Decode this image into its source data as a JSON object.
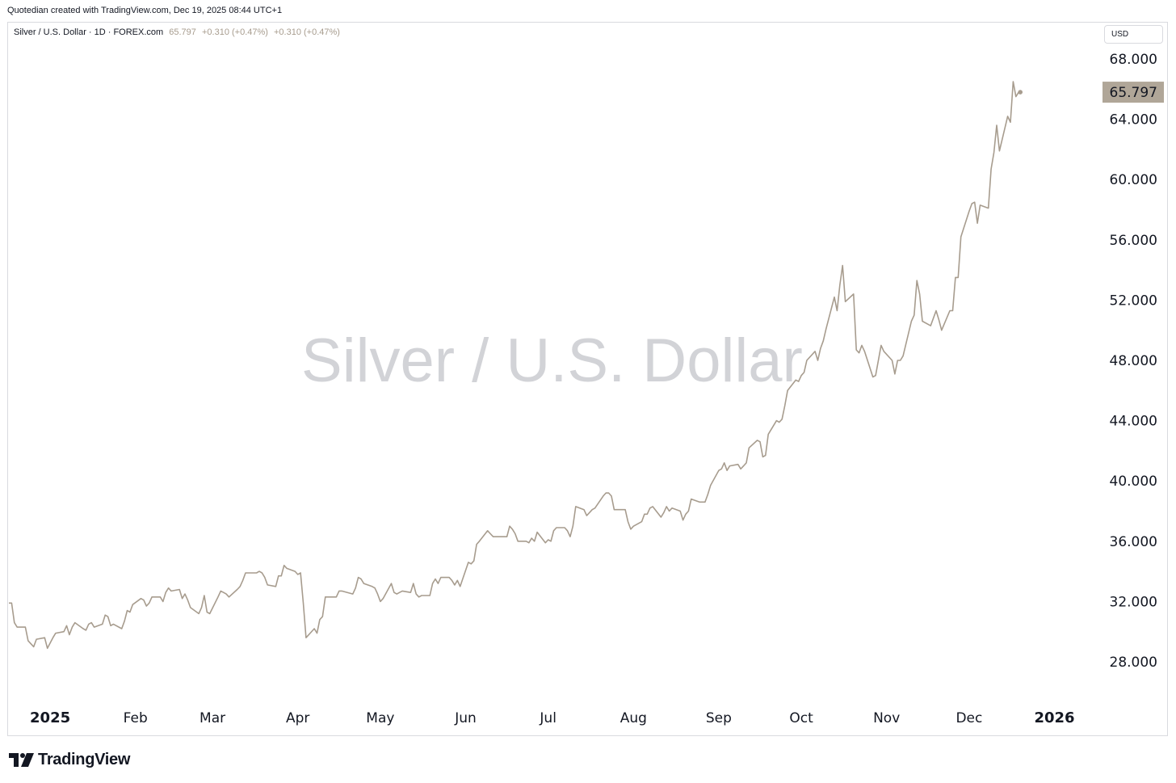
{
  "header": {
    "caption": "Quotedian created with TradingView.com, Dec 19, 2025 08:44 UTC+1"
  },
  "legend": {
    "symbol": "Silver / U.S. Dollar · 1D · FOREX.com",
    "last": "65.797",
    "change_1": "+0.310 (+0.47%)",
    "change_2": "+0.310 (+0.47%)"
  },
  "currency_button": "USD",
  "watermark": "Silver / U.S. Dollar",
  "brand": {
    "name": "TradingView",
    "icon": "tradingview-logo-icon"
  },
  "colors": {
    "line": "#a79c8e",
    "price_label_bg": "#b0a698",
    "grid": "#ffffff",
    "axis_text": "#131722"
  },
  "chart_data": {
    "type": "line",
    "title": "Silver / U.S. Dollar",
    "xlabel": "",
    "ylabel": "",
    "x_tick_labels": [
      "2025",
      "Feb",
      "Mar",
      "Apr",
      "May",
      "Jun",
      "Jul",
      "Aug",
      "Sep",
      "Oct",
      "Nov",
      "Dec",
      "2026"
    ],
    "y_tick_labels": [
      "28.000",
      "32.000",
      "36.000",
      "40.000",
      "44.000",
      "48.000",
      "52.000",
      "56.000",
      "60.000",
      "64.000",
      "68.000"
    ],
    "ylim": [
      25.0,
      69.5
    ],
    "xlim": [
      "2024-12-17",
      "2026-01-17"
    ],
    "grid": false,
    "last_price_label": "65.797",
    "series": [
      {
        "values": [
          [
            "2024-12-17",
            31.9
          ],
          [
            "2024-12-18",
            31.9
          ],
          [
            "2024-12-19",
            30.6
          ],
          [
            "2024-12-20",
            30.3
          ],
          [
            "2024-12-23",
            30.3
          ],
          [
            "2024-12-24",
            29.4
          ],
          [
            "2024-12-26",
            29.0
          ],
          [
            "2024-12-27",
            29.5
          ],
          [
            "2024-12-30",
            29.6
          ],
          [
            "2024-12-31",
            28.9
          ],
          [
            "2025-01-02",
            29.6
          ],
          [
            "2025-01-03",
            29.9
          ],
          [
            "2025-01-06",
            30.0
          ],
          [
            "2025-01-07",
            30.4
          ],
          [
            "2025-01-08",
            29.8
          ],
          [
            "2025-01-09",
            30.3
          ],
          [
            "2025-01-10",
            30.6
          ],
          [
            "2025-01-13",
            30.2
          ],
          [
            "2025-01-14",
            30.1
          ],
          [
            "2025-01-15",
            30.5
          ],
          [
            "2025-01-16",
            30.6
          ],
          [
            "2025-01-17",
            30.3
          ],
          [
            "2025-01-20",
            30.5
          ],
          [
            "2025-01-21",
            31.1
          ],
          [
            "2025-01-22",
            31.0
          ],
          [
            "2025-01-23",
            30.4
          ],
          [
            "2025-01-24",
            30.5
          ],
          [
            "2025-01-27",
            30.2
          ],
          [
            "2025-01-28",
            30.7
          ],
          [
            "2025-01-29",
            31.4
          ],
          [
            "2025-01-30",
            31.3
          ],
          [
            "2025-01-31",
            31.8
          ],
          [
            "2025-02-03",
            32.2
          ],
          [
            "2025-02-04",
            32.1
          ],
          [
            "2025-02-05",
            31.7
          ],
          [
            "2025-02-06",
            31.9
          ],
          [
            "2025-02-07",
            32.3
          ],
          [
            "2025-02-10",
            32.3
          ],
          [
            "2025-02-11",
            32.0
          ],
          [
            "2025-02-12",
            32.6
          ],
          [
            "2025-02-13",
            32.9
          ],
          [
            "2025-02-14",
            32.7
          ],
          [
            "2025-02-17",
            32.8
          ],
          [
            "2025-02-18",
            32.2
          ],
          [
            "2025-02-19",
            32.5
          ],
          [
            "2025-02-20",
            32.1
          ],
          [
            "2025-02-21",
            31.6
          ],
          [
            "2025-02-24",
            31.2
          ],
          [
            "2025-02-25",
            31.6
          ],
          [
            "2025-02-26",
            32.4
          ],
          [
            "2025-02-27",
            31.3
          ],
          [
            "2025-02-28",
            31.2
          ],
          [
            "2025-03-03",
            32.3
          ],
          [
            "2025-03-04",
            32.7
          ],
          [
            "2025-03-05",
            32.6
          ],
          [
            "2025-03-06",
            32.5
          ],
          [
            "2025-03-07",
            32.3
          ],
          [
            "2025-03-10",
            32.8
          ],
          [
            "2025-03-11",
            33.0
          ],
          [
            "2025-03-12",
            33.4
          ],
          [
            "2025-03-13",
            33.9
          ],
          [
            "2025-03-14",
            33.9
          ],
          [
            "2025-03-17",
            33.9
          ],
          [
            "2025-03-18",
            34.0
          ],
          [
            "2025-03-19",
            33.9
          ],
          [
            "2025-03-20",
            33.6
          ],
          [
            "2025-03-21",
            33.1
          ],
          [
            "2025-03-24",
            33.0
          ],
          [
            "2025-03-25",
            33.7
          ],
          [
            "2025-03-26",
            33.7
          ],
          [
            "2025-03-27",
            34.4
          ],
          [
            "2025-03-28",
            34.2
          ],
          [
            "2025-03-31",
            34.0
          ],
          [
            "2025-04-01",
            33.8
          ],
          [
            "2025-04-02",
            33.9
          ],
          [
            "2025-04-03",
            31.9
          ],
          [
            "2025-04-04",
            29.6
          ],
          [
            "2025-04-07",
            30.2
          ],
          [
            "2025-04-08",
            29.9
          ],
          [
            "2025-04-09",
            30.8
          ],
          [
            "2025-04-10",
            31.0
          ],
          [
            "2025-04-11",
            32.3
          ],
          [
            "2025-04-14",
            32.3
          ],
          [
            "2025-04-15",
            32.3
          ],
          [
            "2025-04-16",
            32.7
          ],
          [
            "2025-04-17",
            32.7
          ],
          [
            "2025-04-21",
            32.5
          ],
          [
            "2025-04-22",
            32.9
          ],
          [
            "2025-04-23",
            33.6
          ],
          [
            "2025-04-24",
            33.5
          ],
          [
            "2025-04-25",
            33.2
          ],
          [
            "2025-04-28",
            33.0
          ],
          [
            "2025-04-29",
            32.9
          ],
          [
            "2025-04-30",
            32.5
          ],
          [
            "2025-05-01",
            32.0
          ],
          [
            "2025-05-02",
            32.2
          ],
          [
            "2025-05-05",
            33.2
          ],
          [
            "2025-05-06",
            32.6
          ],
          [
            "2025-05-07",
            32.5
          ],
          [
            "2025-05-08",
            32.6
          ],
          [
            "2025-05-09",
            32.7
          ],
          [
            "2025-05-12",
            32.6
          ],
          [
            "2025-05-13",
            33.2
          ],
          [
            "2025-05-14",
            32.5
          ],
          [
            "2025-05-15",
            32.3
          ],
          [
            "2025-05-16",
            32.4
          ],
          [
            "2025-05-19",
            32.4
          ],
          [
            "2025-05-20",
            33.2
          ],
          [
            "2025-05-21",
            33.5
          ],
          [
            "2025-05-22",
            33.2
          ],
          [
            "2025-05-23",
            33.6
          ],
          [
            "2025-05-26",
            33.6
          ],
          [
            "2025-05-27",
            33.4
          ],
          [
            "2025-05-28",
            33.1
          ],
          [
            "2025-05-29",
            33.4
          ],
          [
            "2025-05-30",
            33.0
          ],
          [
            "2025-06-02",
            34.6
          ],
          [
            "2025-06-03",
            34.5
          ],
          [
            "2025-06-04",
            34.7
          ],
          [
            "2025-06-05",
            35.8
          ],
          [
            "2025-06-06",
            36.0
          ],
          [
            "2025-06-09",
            36.7
          ],
          [
            "2025-06-10",
            36.5
          ],
          [
            "2025-06-11",
            36.3
          ],
          [
            "2025-06-12",
            36.3
          ],
          [
            "2025-06-13",
            36.3
          ],
          [
            "2025-06-16",
            36.3
          ],
          [
            "2025-06-17",
            37.0
          ],
          [
            "2025-06-18",
            36.8
          ],
          [
            "2025-06-19",
            36.5
          ],
          [
            "2025-06-20",
            36.0
          ],
          [
            "2025-06-23",
            36.0
          ],
          [
            "2025-06-24",
            35.9
          ],
          [
            "2025-06-25",
            36.2
          ],
          [
            "2025-06-26",
            36.0
          ],
          [
            "2025-06-27",
            36.6
          ],
          [
            "2025-06-30",
            35.9
          ],
          [
            "2025-07-01",
            36.1
          ],
          [
            "2025-07-02",
            36.0
          ],
          [
            "2025-07-03",
            36.7
          ],
          [
            "2025-07-04",
            36.9
          ],
          [
            "2025-07-07",
            36.9
          ],
          [
            "2025-07-08",
            36.7
          ],
          [
            "2025-07-09",
            36.3
          ],
          [
            "2025-07-10",
            37.0
          ],
          [
            "2025-07-11",
            38.3
          ],
          [
            "2025-07-14",
            38.1
          ],
          [
            "2025-07-15",
            37.7
          ],
          [
            "2025-07-16",
            37.9
          ],
          [
            "2025-07-17",
            38.1
          ],
          [
            "2025-07-18",
            38.2
          ],
          [
            "2025-07-21",
            39.0
          ],
          [
            "2025-07-22",
            39.2
          ],
          [
            "2025-07-23",
            39.2
          ],
          [
            "2025-07-24",
            39.0
          ],
          [
            "2025-07-25",
            38.1
          ],
          [
            "2025-07-28",
            38.1
          ],
          [
            "2025-07-29",
            38.1
          ],
          [
            "2025-07-30",
            37.3
          ],
          [
            "2025-07-31",
            36.8
          ],
          [
            "2025-08-01",
            37.0
          ],
          [
            "2025-08-04",
            37.3
          ],
          [
            "2025-08-05",
            37.8
          ],
          [
            "2025-08-06",
            37.8
          ],
          [
            "2025-08-07",
            38.2
          ],
          [
            "2025-08-08",
            38.3
          ],
          [
            "2025-08-11",
            37.6
          ],
          [
            "2025-08-12",
            37.9
          ],
          [
            "2025-08-13",
            38.3
          ],
          [
            "2025-08-14",
            38.0
          ],
          [
            "2025-08-15",
            38.2
          ],
          [
            "2025-08-18",
            38.0
          ],
          [
            "2025-08-19",
            37.4
          ],
          [
            "2025-08-20",
            37.8
          ],
          [
            "2025-08-21",
            38.0
          ],
          [
            "2025-08-22",
            38.8
          ],
          [
            "2025-08-25",
            38.6
          ],
          [
            "2025-08-26",
            38.6
          ],
          [
            "2025-08-27",
            38.6
          ],
          [
            "2025-08-28",
            39.1
          ],
          [
            "2025-08-29",
            39.7
          ],
          [
            "2025-09-01",
            40.7
          ],
          [
            "2025-09-02",
            40.8
          ],
          [
            "2025-09-03",
            41.2
          ],
          [
            "2025-09-04",
            40.7
          ],
          [
            "2025-09-05",
            41.0
          ],
          [
            "2025-09-08",
            41.1
          ],
          [
            "2025-09-09",
            40.8
          ],
          [
            "2025-09-10",
            41.0
          ],
          [
            "2025-09-11",
            41.2
          ],
          [
            "2025-09-12",
            42.2
          ],
          [
            "2025-09-15",
            42.7
          ],
          [
            "2025-09-16",
            42.6
          ],
          [
            "2025-09-17",
            41.6
          ],
          [
            "2025-09-18",
            41.7
          ],
          [
            "2025-09-19",
            43.1
          ],
          [
            "2025-09-22",
            44.0
          ],
          [
            "2025-09-23",
            43.9
          ],
          [
            "2025-09-24",
            44.1
          ],
          [
            "2025-09-25",
            45.0
          ],
          [
            "2025-09-26",
            46.0
          ],
          [
            "2025-09-29",
            46.7
          ],
          [
            "2025-09-30",
            46.6
          ],
          [
            "2025-10-01",
            47.0
          ],
          [
            "2025-10-02",
            47.2
          ],
          [
            "2025-10-03",
            48.0
          ],
          [
            "2025-10-06",
            48.6
          ],
          [
            "2025-10-07",
            48.0
          ],
          [
            "2025-10-08",
            48.8
          ],
          [
            "2025-10-09",
            49.3
          ],
          [
            "2025-10-10",
            50.1
          ],
          [
            "2025-10-13",
            52.2
          ],
          [
            "2025-10-14",
            51.3
          ],
          [
            "2025-10-15",
            53.0
          ],
          [
            "2025-10-16",
            54.3
          ],
          [
            "2025-10-17",
            51.9
          ],
          [
            "2025-10-20",
            52.4
          ],
          [
            "2025-10-21",
            48.7
          ],
          [
            "2025-10-22",
            48.5
          ],
          [
            "2025-10-23",
            49.0
          ],
          [
            "2025-10-24",
            48.6
          ],
          [
            "2025-10-27",
            46.9
          ],
          [
            "2025-10-28",
            47.0
          ],
          [
            "2025-10-29",
            48.0
          ],
          [
            "2025-10-30",
            49.0
          ],
          [
            "2025-10-31",
            48.6
          ],
          [
            "2025-11-03",
            48.0
          ],
          [
            "2025-11-04",
            47.1
          ],
          [
            "2025-11-05",
            48.0
          ],
          [
            "2025-11-06",
            48.0
          ],
          [
            "2025-11-07",
            48.3
          ],
          [
            "2025-11-10",
            50.6
          ],
          [
            "2025-11-11",
            51.0
          ],
          [
            "2025-11-12",
            53.3
          ],
          [
            "2025-11-13",
            52.4
          ],
          [
            "2025-11-14",
            50.6
          ],
          [
            "2025-11-17",
            50.3
          ],
          [
            "2025-11-18",
            50.8
          ],
          [
            "2025-11-19",
            51.3
          ],
          [
            "2025-11-20",
            50.7
          ],
          [
            "2025-11-21",
            50.0
          ],
          [
            "2025-11-24",
            51.3
          ],
          [
            "2025-11-25",
            51.3
          ],
          [
            "2025-11-26",
            53.5
          ],
          [
            "2025-11-27",
            53.5
          ],
          [
            "2025-11-28",
            56.2
          ],
          [
            "2025-12-01",
            57.9
          ],
          [
            "2025-12-02",
            58.4
          ],
          [
            "2025-12-03",
            58.5
          ],
          [
            "2025-12-04",
            57.1
          ],
          [
            "2025-12-05",
            58.3
          ],
          [
            "2025-12-08",
            58.1
          ],
          [
            "2025-12-09",
            60.7
          ],
          [
            "2025-12-10",
            61.8
          ],
          [
            "2025-12-11",
            63.6
          ],
          [
            "2025-12-12",
            61.9
          ],
          [
            "2025-12-15",
            64.2
          ],
          [
            "2025-12-16",
            63.8
          ],
          [
            "2025-12-17",
            66.5
          ],
          [
            "2025-12-18",
            65.5
          ],
          [
            "2025-12-19",
            65.797
          ]
        ]
      }
    ]
  }
}
